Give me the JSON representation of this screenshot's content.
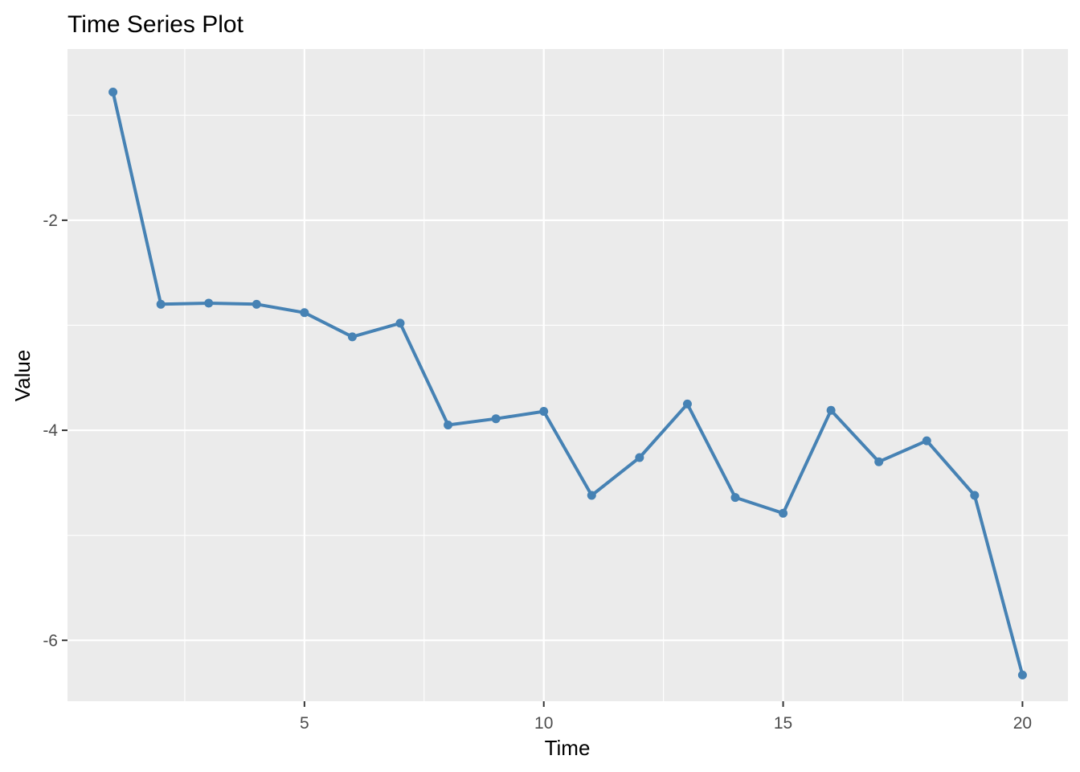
{
  "chart_data": {
    "type": "line",
    "title": "Time Series Plot",
    "xlabel": "Time",
    "ylabel": "Value",
    "xlim": [
      0.05,
      20.95
    ],
    "ylim": [
      -6.58,
      -0.37
    ],
    "x_ticks": [
      5,
      10,
      15,
      20
    ],
    "x_tick_labels": [
      "5",
      "10",
      "15",
      "20"
    ],
    "x_minor_ticks": [
      2.5,
      7.5,
      12.5,
      17.5
    ],
    "y_ticks": [
      -2,
      -4,
      -6
    ],
    "y_tick_labels": [
      "-2",
      "-4",
      "-6"
    ],
    "y_minor_ticks": [
      -1,
      -3,
      -5
    ],
    "grid": true,
    "legend": "none",
    "colors": {
      "panel": "#ebebeb",
      "grid": "#ffffff",
      "series": "#4682b4"
    },
    "series": [
      {
        "x": [
          1,
          2,
          3,
          4,
          5,
          6,
          7,
          8,
          9,
          10,
          11,
          12,
          13,
          14,
          15,
          16,
          17,
          18,
          19,
          20
        ],
        "values": [
          -0.78,
          -2.8,
          -2.79,
          -2.8,
          -2.88,
          -3.11,
          -2.98,
          -3.95,
          -3.89,
          -3.82,
          -4.62,
          -4.26,
          -3.75,
          -4.64,
          -4.79,
          -3.81,
          -4.3,
          -4.1,
          -4.62,
          -6.33
        ]
      }
    ]
  }
}
